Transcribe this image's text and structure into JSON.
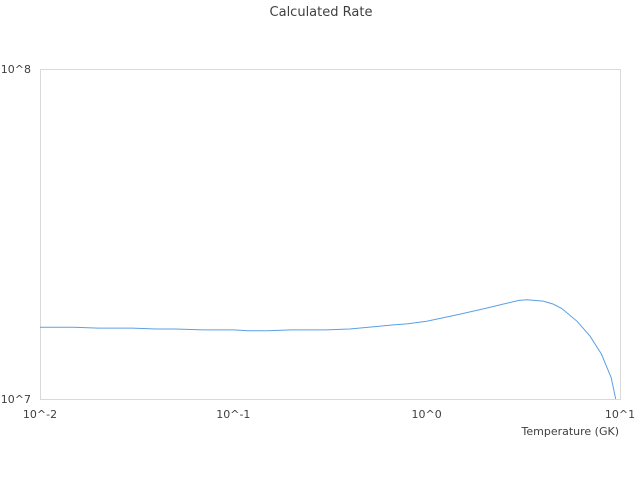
{
  "chart_data": {
    "type": "line",
    "title": "Calculated Rate",
    "xlabel": "Temperature (GK)",
    "ylabel": "",
    "x_scale": "log",
    "y_scale": "log",
    "xlim": [
      0.01,
      10
    ],
    "ylim": [
      10000000,
      100000000
    ],
    "x_ticks": [
      {
        "value": 0.01,
        "label": "10^-2"
      },
      {
        "value": 0.1,
        "label": "10^-1"
      },
      {
        "value": 1,
        "label": "10^0"
      },
      {
        "value": 10,
        "label": "10^1"
      }
    ],
    "y_ticks": [
      {
        "value": 10000000,
        "label": "10^7"
      },
      {
        "value": 100000000,
        "label": "10^8"
      }
    ],
    "grid": false,
    "legend": "none",
    "series": [
      {
        "color": "#5aa0e6",
        "x": [
          0.01,
          0.015,
          0.02,
          0.03,
          0.04,
          0.05,
          0.07,
          0.1,
          0.12,
          0.15,
          0.2,
          0.3,
          0.4,
          0.5,
          0.7,
          0.8,
          1.0,
          1.2,
          1.5,
          2.0,
          2.5,
          3.0,
          3.3,
          4.0,
          4.5,
          5.0,
          6.0,
          7.0,
          8.0,
          9.0,
          9.5
        ],
        "y": [
          16500000,
          16500000,
          16400000,
          16400000,
          16300000,
          16300000,
          16200000,
          16200000,
          16100000,
          16100000,
          16200000,
          16200000,
          16300000,
          16500000,
          16800000,
          16900000,
          17200000,
          17600000,
          18100000,
          18800000,
          19400000,
          19900000,
          20000000,
          19800000,
          19400000,
          18800000,
          17200000,
          15500000,
          13700000,
          11600000,
          10000000
        ]
      }
    ]
  }
}
